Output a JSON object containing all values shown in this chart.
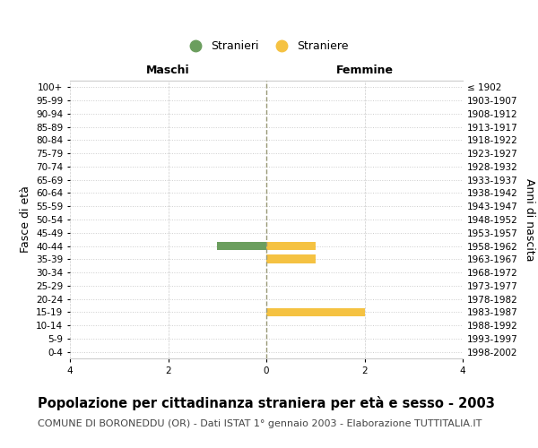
{
  "age_groups": [
    "100+",
    "95-99",
    "90-94",
    "85-89",
    "80-84",
    "75-79",
    "70-74",
    "65-69",
    "60-64",
    "55-59",
    "50-54",
    "45-49",
    "40-44",
    "35-39",
    "30-34",
    "25-29",
    "20-24",
    "15-19",
    "10-14",
    "5-9",
    "0-4"
  ],
  "birth_years": [
    "≤ 1902",
    "1903-1907",
    "1908-1912",
    "1913-1917",
    "1918-1922",
    "1923-1927",
    "1928-1932",
    "1933-1937",
    "1938-1942",
    "1943-1947",
    "1948-1952",
    "1953-1957",
    "1958-1962",
    "1963-1967",
    "1968-1972",
    "1973-1977",
    "1978-1982",
    "1983-1987",
    "1988-1992",
    "1993-1997",
    "1998-2002"
  ],
  "maschi_values": [
    0,
    0,
    0,
    0,
    0,
    0,
    0,
    0,
    0,
    0,
    0,
    0,
    1,
    0,
    0,
    0,
    0,
    0,
    0,
    0,
    0
  ],
  "femmine_values": [
    0,
    0,
    0,
    0,
    0,
    0,
    0,
    0,
    0,
    0,
    0,
    0,
    1,
    1,
    0,
    0,
    0,
    2,
    0,
    0,
    0
  ],
  "maschi_color": "#6b9e5e",
  "femmine_color": "#f5c242",
  "xlim": 4,
  "title": "Popolazione per cittadinanza straniera per età e sesso - 2003",
  "subtitle": "COMUNE DI BORONEDDU (OR) - Dati ISTAT 1° gennaio 2003 - Elaborazione TUTTITALIA.IT",
  "legend_maschi": "Stranieri",
  "legend_femmine": "Straniere",
  "xlabel_left": "Maschi",
  "xlabel_right": "Femmine",
  "ylabel_left": "Fasce di età",
  "ylabel_right": "Anni di nascita",
  "bg_color": "#ffffff",
  "plot_bg_color": "#ffffff",
  "grid_color": "#cccccc",
  "center_line_color": "#999977",
  "bar_height": 0.65,
  "title_fontsize": 10.5,
  "subtitle_fontsize": 8,
  "tick_fontsize": 7.5,
  "label_fontsize": 9
}
